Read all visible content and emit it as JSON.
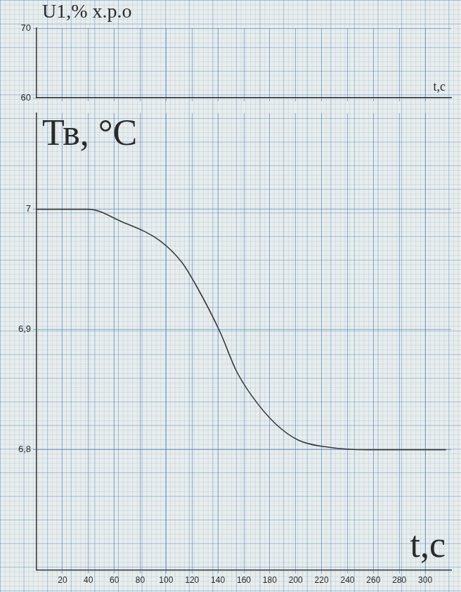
{
  "chart_data": [
    {
      "type": "line",
      "y_label": "U1,% х.р.о",
      "x_label": "t,c",
      "xlim": [
        0,
        320
      ],
      "xticks": [
        20,
        40,
        60,
        80,
        100,
        120,
        140,
        160,
        180,
        200,
        220,
        240,
        260,
        280,
        300
      ],
      "ylim": [
        60,
        70
      ],
      "yticks": [
        60,
        70
      ],
      "tick_labels": "y",
      "grid": true,
      "x": [],
      "values": []
    },
    {
      "type": "line",
      "y_label": "Тв, °С",
      "x_label": "t,c",
      "xlim": [
        0,
        320
      ],
      "xticks": [
        20,
        40,
        60,
        80,
        100,
        120,
        140,
        160,
        180,
        200,
        220,
        240,
        260,
        280,
        300
      ],
      "ylim": [
        6.7,
        7.08
      ],
      "yticks": [
        {
          "value": 6.8,
          "label": "6,8"
        },
        {
          "value": 6.9,
          "label": "6,9"
        },
        7
      ],
      "grid": true,
      "color": "#3a3a3a",
      "x": [
        0,
        20,
        40,
        65,
        95,
        112,
        124,
        142,
        154,
        166,
        184,
        202,
        226,
        255,
        285,
        316
      ],
      "values": [
        7,
        7,
        7,
        6.99,
        6.974,
        6.956,
        6.935,
        6.897,
        6.866,
        6.845,
        6.822,
        6.808,
        6.802,
        6.8,
        6.8,
        6.8
      ]
    }
  ]
}
